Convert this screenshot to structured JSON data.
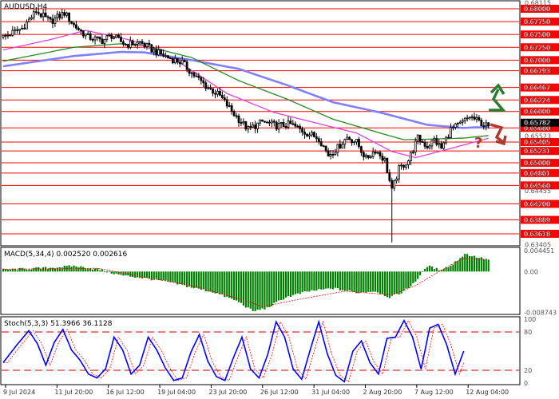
{
  "chart_data": [
    {
      "type": "candlestick",
      "title": "AUDUSD,H4",
      "ylim": [
        0.634,
        0.6814
      ],
      "right_axis_ticks": [
        "0.68115",
        "0.68000",
        "0.67750",
        "0.67500",
        "0.67250",
        "0.67000",
        "0.66793",
        "0.66467",
        "0.66224",
        "0.66000",
        "0.65782",
        "0.65680",
        "0.65523",
        "0.65405",
        "0.65231",
        "0.65000",
        "0.64801",
        "0.64560",
        "0.64455",
        "0.64200",
        "0.63889",
        "0.63618",
        "0.63405"
      ],
      "resistance_support_levels": [
        0.68,
        0.6775,
        0.675,
        0.6725,
        0.67,
        0.66793,
        0.66467,
        0.66224,
        0.66,
        0.6568,
        0.65405,
        0.65231,
        0.65,
        0.64801,
        0.6456,
        0.642,
        0.63889,
        0.63618
      ],
      "level_labels": [
        "0.68000",
        "0.67750",
        "0.67500",
        "0.67250",
        "0.67000",
        "0.66793",
        "0.66467",
        "0.66224",
        "0.66000",
        "0.65680",
        "0.65405",
        "0.65231",
        "0.65000",
        "0.64801",
        "0.64560",
        "0.64200",
        "0.63889",
        "0.63618"
      ],
      "current_price": "0.65782",
      "close_anchors": [
        [
          0,
          0.6745
        ],
        [
          8,
          0.6762
        ],
        [
          14,
          0.6795
        ],
        [
          20,
          0.6775
        ],
        [
          26,
          0.6792
        ],
        [
          30,
          0.6768
        ],
        [
          36,
          0.6745
        ],
        [
          42,
          0.6738
        ],
        [
          46,
          0.6748
        ],
        [
          52,
          0.673
        ],
        [
          58,
          0.6735
        ],
        [
          64,
          0.6718
        ],
        [
          70,
          0.6705
        ],
        [
          76,
          0.6695
        ],
        [
          80,
          0.6675
        ],
        [
          86,
          0.665
        ],
        [
          92,
          0.663
        ],
        [
          98,
          0.6595
        ],
        [
          104,
          0.6565
        ],
        [
          110,
          0.658
        ],
        [
          116,
          0.6572
        ],
        [
          122,
          0.6575
        ],
        [
          128,
          0.656
        ],
        [
          134,
          0.6548
        ],
        [
          138,
          0.6515
        ],
        [
          142,
          0.653
        ],
        [
          146,
          0.655
        ],
        [
          150,
          0.654
        ],
        [
          154,
          0.6508
        ],
        [
          158,
          0.6525
        ],
        [
          162,
          0.6505
        ],
        [
          165,
          0.6445
        ],
        [
          168,
          0.6488
        ],
        [
          172,
          0.6505
        ],
        [
          176,
          0.6548
        ],
        [
          180,
          0.6532
        ],
        [
          183,
          0.6545
        ],
        [
          186,
          0.6528
        ],
        [
          190,
          0.6565
        ],
        [
          194,
          0.6575
        ],
        [
          198,
          0.659
        ],
        [
          202,
          0.658
        ],
        [
          206,
          0.657
        ]
      ],
      "low_spike": [
        165,
        0.6345
      ],
      "moving_averages": [
        {
          "color": "#8080ff",
          "anchors": [
            [
              0,
              0.6688
            ],
            [
              30,
              0.6708
            ],
            [
              50,
              0.6716
            ],
            [
              60,
              0.6715
            ],
            [
              80,
              0.67
            ],
            [
              100,
              0.6683
            ],
            [
              120,
              0.6652
            ],
            [
              140,
              0.6618
            ],
            [
              160,
              0.6598
            ],
            [
              180,
              0.6574
            ],
            [
              195,
              0.6568
            ],
            [
              206,
              0.657
            ]
          ]
        },
        {
          "color": "#228b22",
          "anchors": [
            [
              0,
              0.6698
            ],
            [
              30,
              0.6725
            ],
            [
              50,
              0.6732
            ],
            [
              60,
              0.6728
            ],
            [
              80,
              0.6705
            ],
            [
              100,
              0.666
            ],
            [
              120,
              0.6625
            ],
            [
              140,
              0.6585
            ],
            [
              160,
              0.6558
            ],
            [
              170,
              0.6545
            ],
            [
              180,
              0.6546
            ],
            [
              195,
              0.6548
            ],
            [
              206,
              0.6553
            ]
          ]
        },
        {
          "color": "#dd44dd",
          "anchors": [
            [
              0,
              0.672
            ],
            [
              20,
              0.674
            ],
            [
              35,
              0.6758
            ],
            [
              55,
              0.6738
            ],
            [
              75,
              0.6695
            ],
            [
              95,
              0.6635
            ],
            [
              115,
              0.6598
            ],
            [
              135,
              0.6575
            ],
            [
              150,
              0.6558
            ],
            [
              165,
              0.6522
            ],
            [
              175,
              0.651
            ],
            [
              190,
              0.6528
            ],
            [
              206,
              0.6548
            ]
          ]
        }
      ],
      "annotations": {
        "up_arrow": "green-up-zigzag-arrow",
        "down_arrow": "red-down-zigzag-arrow",
        "question_mark": "?"
      }
    },
    {
      "type": "bar",
      "title": "MACD(5,34,4) 0.002520 0.002616",
      "ylim": [
        -0.009,
        0.005
      ],
      "right_axis_ticks": [
        "0.004451",
        "0.00",
        "-0.008743"
      ],
      "histogram_anchors": [
        [
          0,
          0.0004
        ],
        [
          20,
          0.0008
        ],
        [
          30,
          0.0012
        ],
        [
          40,
          0.0005
        ],
        [
          50,
          -0.0008
        ],
        [
          60,
          -0.0014
        ],
        [
          70,
          -0.0022
        ],
        [
          80,
          -0.0034
        ],
        [
          90,
          -0.0045
        ],
        [
          100,
          -0.0065
        ],
        [
          106,
          -0.0085
        ],
        [
          112,
          -0.0078
        ],
        [
          120,
          -0.0055
        ],
        [
          130,
          -0.0042
        ],
        [
          140,
          -0.0036
        ],
        [
          150,
          -0.0045
        ],
        [
          158,
          -0.0042
        ],
        [
          164,
          -0.0055
        ],
        [
          168,
          -0.0048
        ],
        [
          172,
          -0.0035
        ],
        [
          176,
          -0.0015
        ],
        [
          180,
          0.0012
        ],
        [
          185,
          0.0004
        ],
        [
          190,
          0.0012
        ],
        [
          196,
          0.0038
        ],
        [
          200,
          0.0032
        ],
        [
          206,
          0.0025
        ]
      ],
      "signal_anchors": [
        [
          0,
          0.0005
        ],
        [
          40,
          0.0007
        ],
        [
          60,
          -0.0012
        ],
        [
          80,
          -0.003
        ],
        [
          100,
          -0.0058
        ],
        [
          110,
          -0.0075
        ],
        [
          125,
          -0.006
        ],
        [
          145,
          -0.0042
        ],
        [
          165,
          -0.005
        ],
        [
          175,
          -0.003
        ],
        [
          185,
          0.0
        ],
        [
          195,
          0.0028
        ],
        [
          206,
          0.0026
        ]
      ]
    },
    {
      "type": "line",
      "title": "Stoch(5,3,3) 51.3966 36.1128",
      "ylim": [
        0,
        100
      ],
      "right_axis_ticks": [
        "100",
        "80",
        "20",
        "0"
      ],
      "levels": [
        80,
        20
      ],
      "main_anchors": [
        [
          0,
          32
        ],
        [
          6,
          58
        ],
        [
          12,
          82
        ],
        [
          16,
          62
        ],
        [
          20,
          28
        ],
        [
          24,
          64
        ],
        [
          28,
          84
        ],
        [
          32,
          52
        ],
        [
          36,
          36
        ],
        [
          40,
          14
        ],
        [
          44,
          8
        ],
        [
          48,
          22
        ],
        [
          52,
          72
        ],
        [
          56,
          52
        ],
        [
          60,
          14
        ],
        [
          64,
          28
        ],
        [
          68,
          72
        ],
        [
          72,
          52
        ],
        [
          76,
          24
        ],
        [
          80,
          4
        ],
        [
          84,
          8
        ],
        [
          88,
          48
        ],
        [
          92,
          76
        ],
        [
          96,
          34
        ],
        [
          100,
          10
        ],
        [
          104,
          4
        ],
        [
          108,
          40
        ],
        [
          112,
          72
        ],
        [
          116,
          22
        ],
        [
          120,
          8
        ],
        [
          124,
          44
        ],
        [
          128,
          96
        ],
        [
          132,
          72
        ],
        [
          136,
          22
        ],
        [
          140,
          6
        ],
        [
          144,
          52
        ],
        [
          148,
          96
        ],
        [
          152,
          46
        ],
        [
          156,
          12
        ],
        [
          160,
          2
        ],
        [
          164,
          50
        ],
        [
          168,
          66
        ],
        [
          172,
          32
        ],
        [
          176,
          14
        ],
        [
          180,
          70
        ],
        [
          184,
          72
        ],
        [
          188,
          98
        ],
        [
          192,
          72
        ],
        [
          196,
          22
        ],
        [
          200,
          86
        ],
        [
          204,
          92
        ],
        [
          208,
          60
        ],
        [
          212,
          14
        ],
        [
          216,
          50
        ]
      ],
      "signal_lag": 2
    }
  ],
  "x_axis": {
    "labels": [
      "9 Jul 2024",
      "11 Jul 20:00",
      "16 Jul 12:00",
      "19 Jul 04:00",
      "23 Jul 20:00",
      "26 Jul 12:00",
      "31 Jul 04:00",
      "2 Aug 20:00",
      "7 Aug 12:00",
      "12 Aug 04:00"
    ]
  },
  "colors": {
    "candle": "#000000",
    "level_line": "#ff0000",
    "level_label_bg": "#ff0000",
    "level_label_text": "#ffffff",
    "price_label_bg": "#000000",
    "macd_hist": "#008000",
    "macd_signal": "#ff0000",
    "stoch_main": "#0000ff",
    "stoch_signal": "#ff0000",
    "up_arrow": "#2e7d32",
    "down_arrow": "#b03a2e"
  }
}
